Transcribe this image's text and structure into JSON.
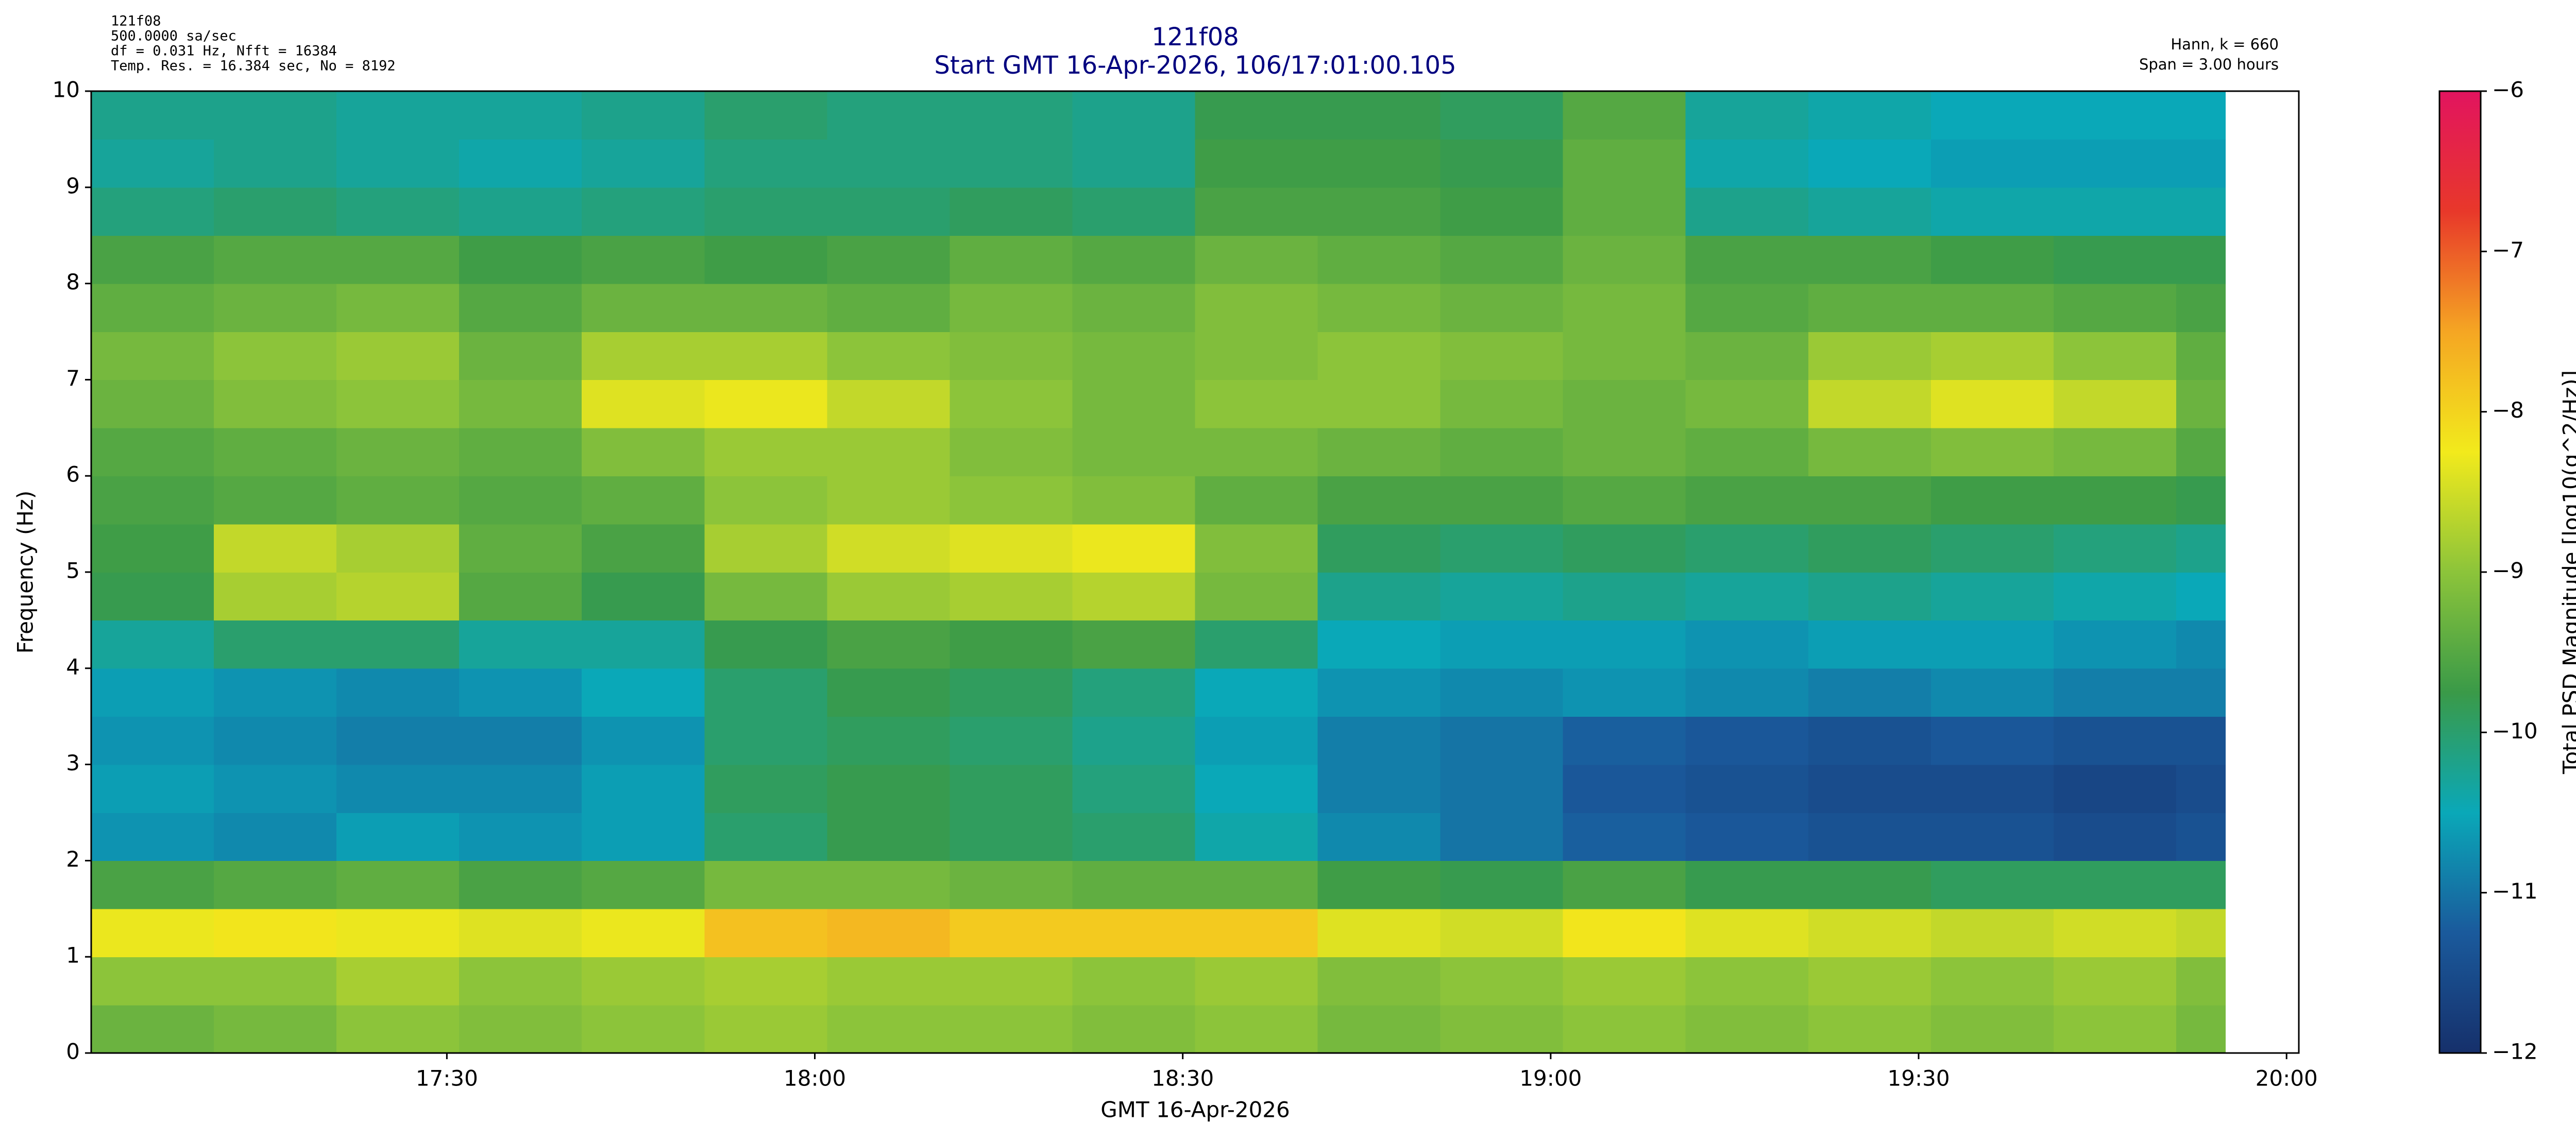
{
  "chart_data": {
    "type": "heatmap",
    "title": "121f08",
    "subtitle": "Start GMT 16-Apr-2026, 106/17:01:00.105",
    "info_left": [
      "121f08",
      "500.0000 sa/sec",
      "df = 0.031 Hz,  Nfft = 16384",
      "Temp. Res. = 16.384 sec, No = 8192"
    ],
    "info_right": [
      "Hann, k = 660",
      "Span = 3.00 hours"
    ],
    "x_label": "GMT 16-Apr-2026",
    "y_label": "Frequency (Hz)",
    "colorbar_label": "Total PSD Magnitude [log10(g^2/Hz)]",
    "xlim": [
      1021,
      1201
    ],
    "xticks": [
      {
        "value": 1050,
        "label": "17:30"
      },
      {
        "value": 1080,
        "label": "18:00"
      },
      {
        "value": 1110,
        "label": "18:30"
      },
      {
        "value": 1140,
        "label": "19:00"
      },
      {
        "value": 1170,
        "label": "19:30"
      },
      {
        "value": 1200,
        "label": "20:00"
      }
    ],
    "ylim": [
      0,
      10
    ],
    "yticks": [
      0,
      1,
      2,
      3,
      4,
      5,
      6,
      7,
      8,
      9,
      10
    ],
    "zlim": [
      -12,
      -6
    ],
    "zticks": [
      {
        "value": -12,
        "label": "−12"
      },
      {
        "value": -11,
        "label": "−11"
      },
      {
        "value": -10,
        "label": "−10"
      },
      {
        "value": -9,
        "label": "−9"
      },
      {
        "value": -8,
        "label": "−8"
      },
      {
        "value": -7,
        "label": "−7"
      },
      {
        "value": -6,
        "label": "−6"
      }
    ],
    "colormap": [
      "#16306b",
      "#1a5a9c",
      "#0aa8b8",
      "#3a9a48",
      "#8cc43a",
      "#f2ea1c",
      "#f5a623",
      "#e8382a",
      "#e2145f"
    ],
    "x_edges": [
      1021,
      1031,
      1041,
      1051,
      1061,
      1071,
      1081,
      1091,
      1101,
      1111,
      1121,
      1131,
      1141,
      1151,
      1161,
      1171,
      1181,
      1191,
      1195
    ],
    "y_edges": [
      0,
      0.5,
      1,
      1.5,
      2,
      2.5,
      3,
      3.5,
      4,
      4.5,
      5,
      5.5,
      6,
      6.5,
      7,
      7.5,
      8,
      8.5,
      9,
      9.5,
      10
    ],
    "z": [
      [
        -9.3,
        -9.2,
        -9.0,
        -9.1,
        -9.0,
        -8.9,
        -9.0,
        -9.0,
        -9.1,
        -9.0,
        -9.2,
        -9.1,
        -9.0,
        -9.1,
        -9.0,
        -9.1,
        -9.0,
        -9.2
      ],
      [
        -9.0,
        -9.0,
        -8.8,
        -9.0,
        -8.9,
        -8.8,
        -8.9,
        -8.9,
        -9.0,
        -8.9,
        -9.1,
        -9.0,
        -8.9,
        -9.0,
        -8.9,
        -9.0,
        -8.9,
        -9.1
      ],
      [
        -8.3,
        -8.2,
        -8.3,
        -8.4,
        -8.3,
        -7.8,
        -7.7,
        -7.9,
        -7.9,
        -7.9,
        -8.4,
        -8.5,
        -8.2,
        -8.4,
        -8.5,
        -8.6,
        -8.5,
        -8.6
      ],
      [
        -9.6,
        -9.5,
        -9.4,
        -9.6,
        -9.5,
        -9.2,
        -9.2,
        -9.3,
        -9.4,
        -9.4,
        -9.7,
        -9.8,
        -9.6,
        -9.8,
        -9.8,
        -9.9,
        -9.9,
        -9.9
      ],
      [
        -10.7,
        -10.8,
        -10.6,
        -10.7,
        -10.6,
        -10.0,
        -9.8,
        -9.9,
        -10.0,
        -10.4,
        -10.8,
        -11.0,
        -11.2,
        -11.3,
        -11.4,
        -11.4,
        -11.5,
        -11.4
      ],
      [
        -10.6,
        -10.7,
        -10.8,
        -10.8,
        -10.6,
        -9.9,
        -9.8,
        -9.9,
        -10.1,
        -10.5,
        -10.9,
        -11.0,
        -11.3,
        -11.4,
        -11.5,
        -11.5,
        -11.6,
        -11.5
      ],
      [
        -10.7,
        -10.8,
        -10.9,
        -10.9,
        -10.7,
        -10.0,
        -9.9,
        -10.0,
        -10.2,
        -10.6,
        -10.9,
        -11.0,
        -11.2,
        -11.3,
        -11.4,
        -11.3,
        -11.4,
        -11.4
      ],
      [
        -10.6,
        -10.7,
        -10.8,
        -10.7,
        -10.5,
        -10.0,
        -9.8,
        -9.9,
        -10.1,
        -10.5,
        -10.7,
        -10.8,
        -10.7,
        -10.8,
        -10.9,
        -10.8,
        -10.9,
        -10.9
      ],
      [
        -10.3,
        -10.0,
        -10.0,
        -10.3,
        -10.3,
        -9.8,
        -9.6,
        -9.7,
        -9.6,
        -10.0,
        -10.5,
        -10.6,
        -10.6,
        -10.7,
        -10.6,
        -10.6,
        -10.7,
        -10.8
      ],
      [
        -9.8,
        -8.8,
        -8.7,
        -9.5,
        -9.8,
        -9.2,
        -8.9,
        -8.8,
        -8.7,
        -9.2,
        -10.2,
        -10.3,
        -10.2,
        -10.3,
        -10.2,
        -10.3,
        -10.4,
        -10.5
      ],
      [
        -9.7,
        -8.6,
        -8.8,
        -9.4,
        -9.6,
        -8.8,
        -8.5,
        -8.4,
        -8.3,
        -9.1,
        -9.9,
        -10.0,
        -9.9,
        -10.0,
        -9.9,
        -10.0,
        -10.1,
        -10.2
      ],
      [
        -9.6,
        -9.5,
        -9.4,
        -9.5,
        -9.4,
        -9.0,
        -8.9,
        -9.0,
        -9.1,
        -9.4,
        -9.6,
        -9.6,
        -9.5,
        -9.6,
        -9.6,
        -9.7,
        -9.7,
        -9.8
      ],
      [
        -9.5,
        -9.4,
        -9.3,
        -9.4,
        -9.1,
        -8.9,
        -8.9,
        -9.1,
        -9.2,
        -9.2,
        -9.3,
        -9.4,
        -9.3,
        -9.4,
        -9.2,
        -9.1,
        -9.2,
        -9.5
      ],
      [
        -9.3,
        -9.1,
        -9.0,
        -9.2,
        -8.4,
        -8.3,
        -8.6,
        -9.0,
        -9.2,
        -9.0,
        -9.0,
        -9.2,
        -9.3,
        -9.2,
        -8.6,
        -8.4,
        -8.6,
        -9.3
      ],
      [
        -9.2,
        -9.0,
        -8.9,
        -9.3,
        -8.8,
        -8.8,
        -9.0,
        -9.1,
        -9.2,
        -9.1,
        -9.0,
        -9.1,
        -9.2,
        -9.3,
        -8.9,
        -8.8,
        -9.0,
        -9.4
      ],
      [
        -9.4,
        -9.3,
        -9.2,
        -9.5,
        -9.3,
        -9.3,
        -9.4,
        -9.2,
        -9.3,
        -9.1,
        -9.2,
        -9.3,
        -9.2,
        -9.5,
        -9.4,
        -9.4,
        -9.5,
        -9.6
      ],
      [
        -9.6,
        -9.5,
        -9.5,
        -9.7,
        -9.6,
        -9.7,
        -9.6,
        -9.4,
        -9.5,
        -9.3,
        -9.4,
        -9.5,
        -9.3,
        -9.6,
        -9.6,
        -9.7,
        -9.8,
        -9.8
      ],
      [
        -10.1,
        -10.0,
        -10.1,
        -10.2,
        -10.1,
        -10.0,
        -10.0,
        -9.9,
        -10.0,
        -9.6,
        -9.6,
        -9.7,
        -9.4,
        -10.2,
        -10.3,
        -10.4,
        -10.4,
        -10.4
      ],
      [
        -10.3,
        -10.2,
        -10.3,
        -10.4,
        -10.3,
        -10.1,
        -10.1,
        -10.1,
        -10.2,
        -9.7,
        -9.7,
        -9.8,
        -9.4,
        -10.4,
        -10.5,
        -10.6,
        -10.6,
        -10.6
      ],
      [
        -10.2,
        -10.2,
        -10.3,
        -10.3,
        -10.2,
        -10.0,
        -10.1,
        -10.1,
        -10.2,
        -9.8,
        -9.8,
        -9.9,
        -9.5,
        -10.3,
        -10.4,
        -10.5,
        -10.5,
        -10.5
      ]
    ]
  }
}
